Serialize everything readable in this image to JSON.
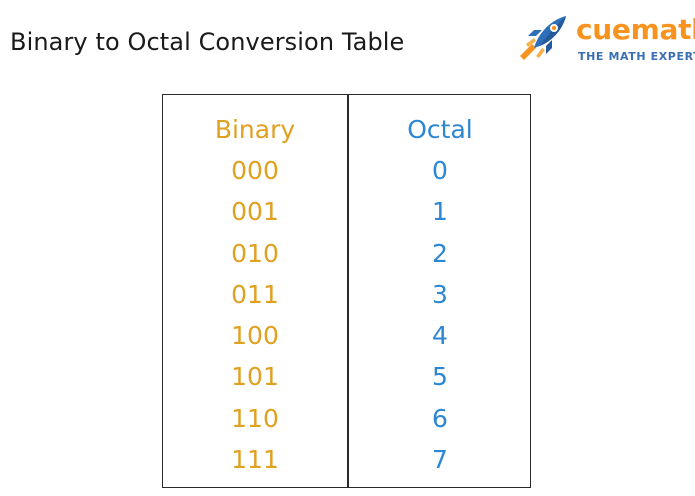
{
  "page": {
    "title": "Binary to Octal Conversion Table"
  },
  "logo": {
    "name": "cuemath",
    "tagline": "THE MATH EXPERT",
    "icon": "rocket-icon",
    "colors": {
      "brand_orange": "#f7931e",
      "brand_blue": "#3a6fb3"
    }
  },
  "table": {
    "headers": {
      "binary": "Binary",
      "octal": "Octal"
    },
    "rows": [
      {
        "binary": "000",
        "octal": "0"
      },
      {
        "binary": "001",
        "octal": "1"
      },
      {
        "binary": "010",
        "octal": "2"
      },
      {
        "binary": "011",
        "octal": "3"
      },
      {
        "binary": "100",
        "octal": "4"
      },
      {
        "binary": "101",
        "octal": "5"
      },
      {
        "binary": "110",
        "octal": "6"
      },
      {
        "binary": "111",
        "octal": "7"
      }
    ],
    "colors": {
      "binary": "#e0a020",
      "octal": "#2c86d2"
    }
  }
}
